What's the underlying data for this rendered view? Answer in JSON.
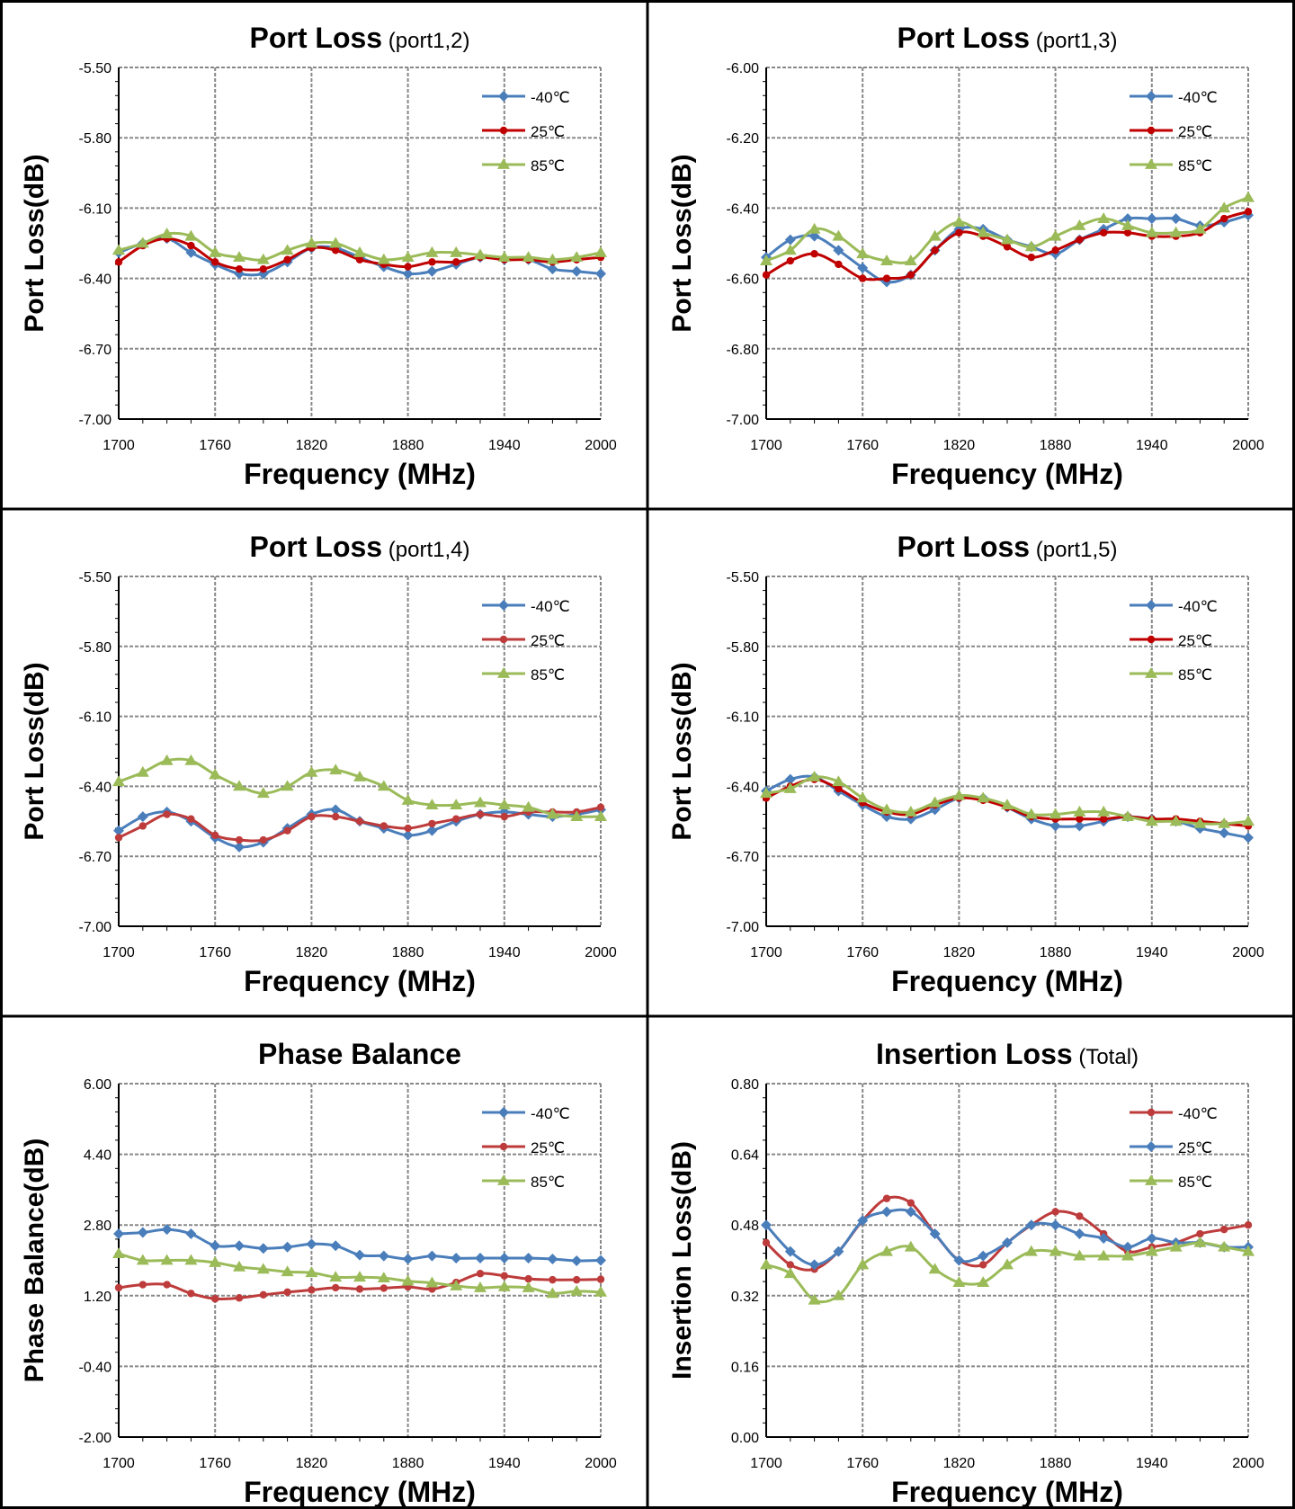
{
  "colors": {
    "blue": "#4a7ebb",
    "red": "#be3b3b",
    "green": "#9bbb59",
    "red2": "#c00000"
  },
  "chart_data": [
    {
      "type": "line",
      "title": "Port Loss",
      "title_suffix": "(port1,2)",
      "xlabel": "Frequency (MHz)",
      "ylabel": "Port  Loss(dB)",
      "xlim": [
        1700,
        2000
      ],
      "xticks": [
        "1700",
        "1760",
        "1820",
        "1880",
        "1940",
        "2000"
      ],
      "ylim": [
        -7.0,
        -5.5
      ],
      "yticks": [
        "-5.50",
        "-5.80",
        "-6.10",
        "-6.40",
        "-6.70",
        "-7.00"
      ],
      "grid": true,
      "legend": "top-right",
      "x": [
        1700,
        1715,
        1730,
        1745,
        1760,
        1775,
        1790,
        1805,
        1820,
        1835,
        1850,
        1865,
        1880,
        1895,
        1910,
        1925,
        1940,
        1955,
        1970,
        1985,
        2000
      ],
      "series": [
        {
          "name": "-40℃",
          "color": "blue",
          "marker": "diamond",
          "values": [
            -6.29,
            -6.25,
            -6.23,
            -6.29,
            -6.34,
            -6.38,
            -6.38,
            -6.33,
            -6.27,
            -6.27,
            -6.31,
            -6.35,
            -6.38,
            -6.37,
            -6.34,
            -6.31,
            -6.32,
            -6.32,
            -6.36,
            -6.37,
            -6.38
          ]
        },
        {
          "name": "25℃",
          "color": "red2",
          "marker": "circle",
          "values": [
            -6.33,
            -6.26,
            -6.23,
            -6.26,
            -6.33,
            -6.36,
            -6.36,
            -6.32,
            -6.27,
            -6.28,
            -6.32,
            -6.34,
            -6.35,
            -6.33,
            -6.33,
            -6.31,
            -6.32,
            -6.32,
            -6.33,
            -6.32,
            -6.31
          ]
        },
        {
          "name": "85℃",
          "color": "green",
          "marker": "triangle",
          "values": [
            -6.28,
            -6.25,
            -6.21,
            -6.22,
            -6.29,
            -6.31,
            -6.32,
            -6.28,
            -6.25,
            -6.25,
            -6.29,
            -6.32,
            -6.31,
            -6.29,
            -6.29,
            -6.3,
            -6.31,
            -6.31,
            -6.32,
            -6.31,
            -6.29
          ]
        }
      ]
    },
    {
      "type": "line",
      "title": "Port Loss",
      "title_suffix": "(port1,3)",
      "xlabel": "Frequency (MHz)",
      "ylabel": "Port  Loss(dB)",
      "xlim": [
        1700,
        2000
      ],
      "xticks": [
        "1700",
        "1760",
        "1820",
        "1880",
        "1940",
        "2000"
      ],
      "ylim": [
        -7.0,
        -6.0
      ],
      "yticks": [
        "-6.00",
        "-6.20",
        "-6.40",
        "-6.60",
        "-6.80",
        "-7.00"
      ],
      "grid": true,
      "legend": "top-right",
      "x": [
        1700,
        1715,
        1730,
        1745,
        1760,
        1775,
        1790,
        1805,
        1820,
        1835,
        1850,
        1865,
        1880,
        1895,
        1910,
        1925,
        1940,
        1955,
        1970,
        1985,
        2000
      ],
      "series": [
        {
          "name": "-40℃",
          "color": "blue",
          "marker": "diamond",
          "values": [
            -6.54,
            -6.49,
            -6.48,
            -6.52,
            -6.57,
            -6.61,
            -6.59,
            -6.52,
            -6.46,
            -6.46,
            -6.49,
            -6.51,
            -6.53,
            -6.49,
            -6.46,
            -6.43,
            -6.43,
            -6.43,
            -6.45,
            -6.44,
            -6.42
          ]
        },
        {
          "name": "25℃",
          "color": "red2",
          "marker": "circle",
          "values": [
            -6.59,
            -6.55,
            -6.53,
            -6.56,
            -6.6,
            -6.6,
            -6.59,
            -6.52,
            -6.47,
            -6.48,
            -6.51,
            -6.54,
            -6.52,
            -6.49,
            -6.47,
            -6.47,
            -6.48,
            -6.48,
            -6.47,
            -6.43,
            -6.41
          ]
        },
        {
          "name": "85℃",
          "color": "green",
          "marker": "triangle",
          "values": [
            -6.55,
            -6.52,
            -6.46,
            -6.48,
            -6.53,
            -6.55,
            -6.55,
            -6.48,
            -6.44,
            -6.47,
            -6.49,
            -6.51,
            -6.48,
            -6.45,
            -6.43,
            -6.45,
            -6.47,
            -6.47,
            -6.46,
            -6.4,
            -6.37
          ]
        }
      ]
    },
    {
      "type": "line",
      "title": "Port Loss",
      "title_suffix": "(port1,4)",
      "xlabel": "Frequency (MHz)",
      "ylabel": "Port  Loss(dB)",
      "xlim": [
        1700,
        2000
      ],
      "xticks": [
        "1700",
        "1760",
        "1820",
        "1880",
        "1940",
        "2000"
      ],
      "ylim": [
        -7.0,
        -5.5
      ],
      "yticks": [
        "-5.50",
        "-5.80",
        "-6.10",
        "-6.40",
        "-6.70",
        "-7.00"
      ],
      "grid": true,
      "legend": "top-right",
      "x": [
        1700,
        1715,
        1730,
        1745,
        1760,
        1775,
        1790,
        1805,
        1820,
        1835,
        1850,
        1865,
        1880,
        1895,
        1910,
        1925,
        1940,
        1955,
        1970,
        1985,
        2000
      ],
      "series": [
        {
          "name": "-40℃",
          "color": "blue",
          "marker": "diamond",
          "values": [
            -6.59,
            -6.53,
            -6.51,
            -6.55,
            -6.62,
            -6.66,
            -6.64,
            -6.58,
            -6.52,
            -6.5,
            -6.55,
            -6.58,
            -6.61,
            -6.59,
            -6.55,
            -6.52,
            -6.51,
            -6.52,
            -6.53,
            -6.52,
            -6.5
          ]
        },
        {
          "name": "25℃",
          "color": "red",
          "marker": "circle",
          "values": [
            -6.62,
            -6.57,
            -6.52,
            -6.54,
            -6.61,
            -6.63,
            -6.63,
            -6.59,
            -6.53,
            -6.53,
            -6.55,
            -6.57,
            -6.58,
            -6.56,
            -6.54,
            -6.52,
            -6.53,
            -6.51,
            -6.51,
            -6.51,
            -6.49
          ]
        },
        {
          "name": "85℃",
          "color": "green",
          "marker": "triangle",
          "values": [
            -6.38,
            -6.34,
            -6.29,
            -6.29,
            -6.35,
            -6.4,
            -6.43,
            -6.4,
            -6.34,
            -6.33,
            -6.36,
            -6.4,
            -6.46,
            -6.48,
            -6.48,
            -6.47,
            -6.48,
            -6.49,
            -6.52,
            -6.53,
            -6.53
          ]
        }
      ]
    },
    {
      "type": "line",
      "title": "Port Loss",
      "title_suffix": "(port1,5)",
      "xlabel": "Frequency (MHz)",
      "ylabel": "Port  Loss(dB)",
      "xlim": [
        1700,
        2000
      ],
      "xticks": [
        "1700",
        "1760",
        "1820",
        "1880",
        "1940",
        "2000"
      ],
      "ylim": [
        -7.0,
        -5.5
      ],
      "yticks": [
        "-5.50",
        "-5.80",
        "-6.10",
        "-6.40",
        "-6.70",
        "-7.00"
      ],
      "grid": true,
      "legend": "top-right",
      "x": [
        1700,
        1715,
        1730,
        1745,
        1760,
        1775,
        1790,
        1805,
        1820,
        1835,
        1850,
        1865,
        1880,
        1895,
        1910,
        1925,
        1940,
        1955,
        1970,
        1985,
        2000
      ],
      "series": [
        {
          "name": "-40℃",
          "color": "blue",
          "marker": "diamond",
          "values": [
            -6.42,
            -6.37,
            -6.36,
            -6.42,
            -6.48,
            -6.53,
            -6.54,
            -6.5,
            -6.45,
            -6.45,
            -6.49,
            -6.54,
            -6.57,
            -6.57,
            -6.55,
            -6.53,
            -6.54,
            -6.55,
            -6.58,
            -6.6,
            -6.62
          ]
        },
        {
          "name": "25℃",
          "color": "red2",
          "marker": "circle",
          "values": [
            -6.45,
            -6.4,
            -6.37,
            -6.41,
            -6.47,
            -6.51,
            -6.52,
            -6.48,
            -6.45,
            -6.46,
            -6.49,
            -6.53,
            -6.54,
            -6.54,
            -6.54,
            -6.53,
            -6.54,
            -6.54,
            -6.55,
            -6.56,
            -6.57
          ]
        },
        {
          "name": "85℃",
          "color": "green",
          "marker": "triangle",
          "values": [
            -6.43,
            -6.41,
            -6.36,
            -6.38,
            -6.45,
            -6.5,
            -6.51,
            -6.47,
            -6.44,
            -6.45,
            -6.48,
            -6.52,
            -6.52,
            -6.51,
            -6.51,
            -6.53,
            -6.55,
            -6.55,
            -6.56,
            -6.56,
            -6.55
          ]
        }
      ]
    },
    {
      "type": "line",
      "title": "Phase Balance",
      "title_suffix": "",
      "xlabel": "Frequency (MHz)",
      "ylabel": "Phase Balance(dB)",
      "xlim": [
        1700,
        2000
      ],
      "xticks": [
        "1700",
        "1760",
        "1820",
        "1880",
        "1940",
        "2000"
      ],
      "ylim": [
        -2.0,
        6.0
      ],
      "yticks": [
        "6.00",
        "4.40",
        "2.80",
        "1.20",
        "-0.40",
        "-2.00"
      ],
      "grid": true,
      "legend": "top-right",
      "x": [
        1700,
        1715,
        1730,
        1745,
        1760,
        1775,
        1790,
        1805,
        1820,
        1835,
        1850,
        1865,
        1880,
        1895,
        1910,
        1925,
        1940,
        1955,
        1970,
        1985,
        2000
      ],
      "series": [
        {
          "name": "-40℃",
          "color": "blue",
          "marker": "diamond",
          "values": [
            2.6,
            2.63,
            2.7,
            2.6,
            2.33,
            2.33,
            2.27,
            2.3,
            2.37,
            2.33,
            2.12,
            2.1,
            2.03,
            2.1,
            2.05,
            2.05,
            2.05,
            2.05,
            2.03,
            1.99,
            2.0
          ]
        },
        {
          "name": "25℃",
          "color": "red",
          "marker": "circle",
          "values": [
            1.38,
            1.45,
            1.45,
            1.25,
            1.13,
            1.15,
            1.22,
            1.28,
            1.33,
            1.38,
            1.35,
            1.37,
            1.4,
            1.35,
            1.5,
            1.7,
            1.65,
            1.58,
            1.56,
            1.56,
            1.57
          ]
        },
        {
          "name": "85℃",
          "color": "green",
          "marker": "triangle",
          "values": [
            2.15,
            2.0,
            2.0,
            2.0,
            1.95,
            1.85,
            1.8,
            1.74,
            1.72,
            1.62,
            1.62,
            1.6,
            1.53,
            1.49,
            1.42,
            1.38,
            1.4,
            1.38,
            1.25,
            1.3,
            1.28
          ]
        }
      ]
    },
    {
      "type": "line",
      "title": "Insertion Loss",
      "title_suffix": "(Total)",
      "xlabel": "Frequency (MHz)",
      "ylabel": "Insertion  Loss(dB)",
      "xlim": [
        1700,
        2000
      ],
      "xticks": [
        "1700",
        "1760",
        "1820",
        "1880",
        "1940",
        "2000"
      ],
      "ylim": [
        0.0,
        0.8
      ],
      "yticks": [
        "0.80",
        "0.64",
        "0.48",
        "0.32",
        "0.16",
        "0.00"
      ],
      "grid": true,
      "legend": "top-right",
      "x": [
        1700,
        1715,
        1730,
        1745,
        1760,
        1775,
        1790,
        1805,
        1820,
        1835,
        1850,
        1865,
        1880,
        1895,
        1910,
        1925,
        1940,
        1955,
        1970,
        1985,
        2000
      ],
      "series": [
        {
          "name": "-40℃",
          "color": "red",
          "marker": "circle",
          "values": [
            0.44,
            0.39,
            0.38,
            0.42,
            0.49,
            0.54,
            0.53,
            0.46,
            0.4,
            0.39,
            0.44,
            0.48,
            0.51,
            0.5,
            0.46,
            0.42,
            0.43,
            0.44,
            0.46,
            0.47,
            0.48
          ]
        },
        {
          "name": "25℃",
          "color": "blue",
          "marker": "diamond",
          "values": [
            0.48,
            0.42,
            0.39,
            0.42,
            0.49,
            0.51,
            0.51,
            0.46,
            0.4,
            0.41,
            0.44,
            0.48,
            0.48,
            0.46,
            0.45,
            0.43,
            0.45,
            0.44,
            0.44,
            0.43,
            0.43
          ]
        },
        {
          "name": "85℃",
          "color": "green",
          "marker": "triangle",
          "values": [
            0.39,
            0.37,
            0.31,
            0.32,
            0.39,
            0.42,
            0.43,
            0.38,
            0.35,
            0.35,
            0.39,
            0.42,
            0.42,
            0.41,
            0.41,
            0.41,
            0.42,
            0.43,
            0.44,
            0.43,
            0.42
          ]
        }
      ]
    }
  ]
}
